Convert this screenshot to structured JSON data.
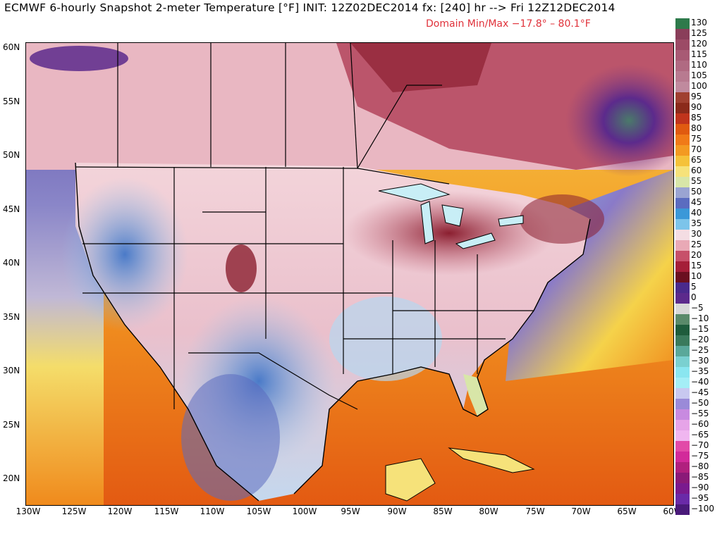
{
  "header": {
    "title": "ECMWF 6-hourly Snapshot 2-meter Temperature [°F] INIT: 12Z02DEC2014 fx: [240] hr --> Fri 12Z12DEC2014",
    "subtitle": "Domain Min/Max −17.8° –  80.1°F"
  },
  "map": {
    "lat_labels": [
      "60N",
      "55N",
      "50N",
      "45N",
      "40N",
      "35N",
      "30N",
      "25N",
      "20N"
    ],
    "lon_labels": [
      "130W",
      "125W",
      "120W",
      "115W",
      "110W",
      "105W",
      "100W",
      "95W",
      "90W",
      "85W",
      "80W",
      "75W",
      "70W",
      "65W",
      "60W"
    ],
    "regions": [
      {
        "name": "cold-core-northeast-canada",
        "color": "#5c2a8c"
      },
      {
        "name": "warm-gulf-of-mexico",
        "color": "#f08a1c"
      },
      {
        "name": "warm-atlantic",
        "color": "#f0a020"
      },
      {
        "name": "warm-pacific-south",
        "color": "#f3c83a"
      },
      {
        "name": "mild-plains",
        "color": "#f1c6cf"
      },
      {
        "name": "cool-mountain-west",
        "color": "#9cc8ec"
      },
      {
        "name": "cold-great-lakes-band",
        "color": "#a0283a"
      }
    ]
  },
  "colorbar": {
    "labels": [
      "130",
      "125",
      "120",
      "115",
      "110",
      "105",
      "100",
      "95",
      "90",
      "85",
      "80",
      "75",
      "70",
      "65",
      "60",
      "55",
      "50",
      "45",
      "40",
      "35",
      "30",
      "25",
      "20",
      "15",
      "10",
      "5",
      "0",
      "−5",
      "−10",
      "−15",
      "−20",
      "−25",
      "−30",
      "−35",
      "−40",
      "−45",
      "−50",
      "−55",
      "−60",
      "−65",
      "−70",
      "−75",
      "−80",
      "−85",
      "−90",
      "−95",
      "−100"
    ],
    "colors": [
      "#2e7a4b",
      "#8a3e5a",
      "#9c4a66",
      "#a85a74",
      "#b06a82",
      "#b87a90",
      "#c08a9e",
      "#a04030",
      "#8b2a1a",
      "#c0341c",
      "#e05a10",
      "#f07a18",
      "#f39a22",
      "#f5c23a",
      "#f6e27a",
      "#d8e6a8",
      "#9aa4d2",
      "#5b6cc0",
      "#3a98d8",
      "#7cc4ea",
      "#f4dde3",
      "#e9a9b6",
      "#c7506a",
      "#a51e38",
      "#6b0f20",
      "#4a2a8c",
      "#5c2a8c",
      "#d8d8d8",
      "#5a8a6a",
      "#1e5c3c",
      "#3a7a5c",
      "#5aa89a",
      "#7ad0d0",
      "#8ae6f0",
      "#a4eef6",
      "#c8c8f0",
      "#9a8ad8",
      "#c88ae0",
      "#e6a4e8",
      "#f0b6f0",
      "#e24aa8",
      "#d22a9a",
      "#b0207e",
      "#8a1a78",
      "#7a1a8e",
      "#6a2aa8",
      "#4a1a7a"
    ]
  }
}
